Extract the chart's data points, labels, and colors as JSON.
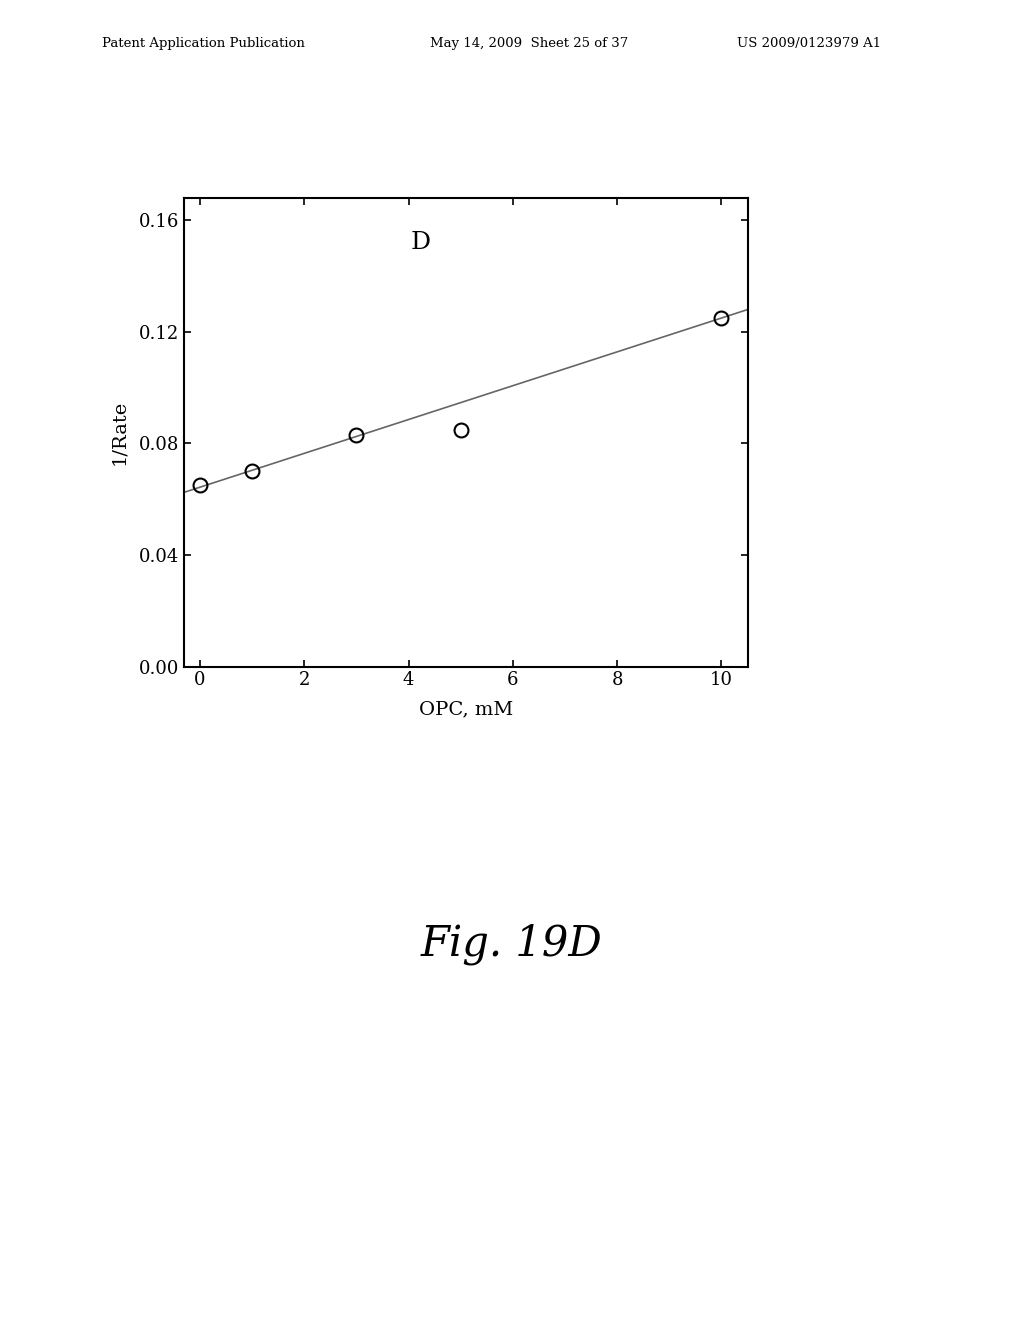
{
  "x_data": [
    0,
    1,
    3,
    5,
    10
  ],
  "y_data": [
    0.065,
    0.07,
    0.083,
    0.085,
    0.125
  ],
  "line_x": [
    -0.3,
    10.5
  ],
  "line_y": [
    0.0625,
    0.128
  ],
  "xlabel": "OPC, mM",
  "ylabel": "1/Rate",
  "xlim": [
    -0.3,
    10.5
  ],
  "ylim": [
    0.0,
    0.168
  ],
  "yticks": [
    0.0,
    0.04,
    0.08,
    0.12,
    0.16
  ],
  "xticks": [
    0,
    2,
    4,
    6,
    8,
    10
  ],
  "panel_label": "D",
  "fig_caption": "Fig. 19D",
  "header_left": "Patent Application Publication",
  "header_mid": "May 14, 2009  Sheet 25 of 37",
  "header_right": "US 2009/0123979 A1",
  "line_color": "#666666",
  "marker_color": "#000000",
  "background_color": "#ffffff"
}
